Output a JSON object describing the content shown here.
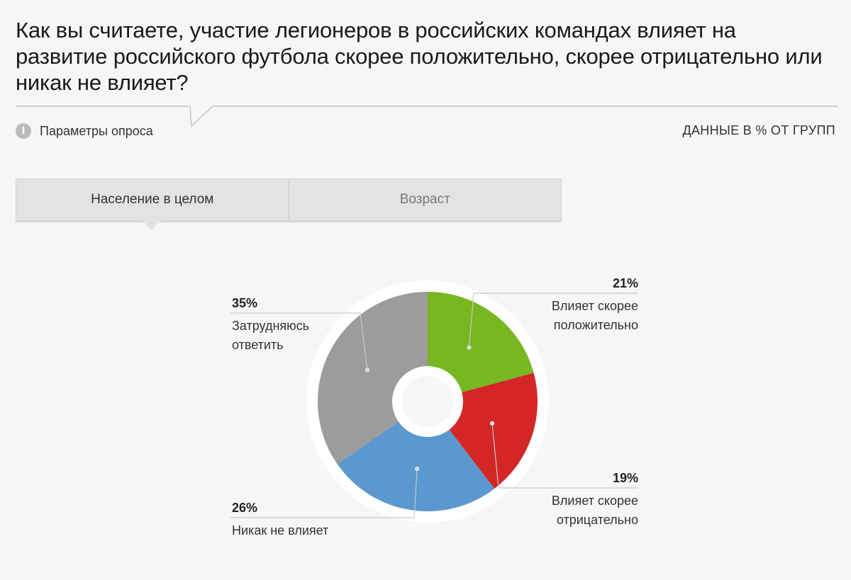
{
  "question": "Как вы считаете, участие легионеров в российских командах влияет на развитие российского футбола скорее положительно, скорее отрицательно или никак не влияет?",
  "params_label": "Параметры опроса",
  "units_label": "ДАННЫЕ В % ОТ ГРУПП",
  "tabs": [
    {
      "label": "Население в целом",
      "active": true
    },
    {
      "label": "Возраст",
      "active": false
    }
  ],
  "icons": {
    "info": "info-icon"
  },
  "chart_data": {
    "type": "pie",
    "donut": true,
    "slices": [
      {
        "label": "Влияет скорее положительно",
        "value": 21,
        "pct_label": "21%",
        "color": "#77b720"
      },
      {
        "label": "Влияет скорее отрицательно",
        "value": 19,
        "pct_label": "19%",
        "color": "#d42626"
      },
      {
        "label": "Никак не влияет",
        "value": 26,
        "pct_label": "26%",
        "color": "#5b98cf"
      },
      {
        "label": "Затрудняюсь ответить",
        "value": 35,
        "pct_label": "35%",
        "color": "#9c9c9c"
      }
    ]
  }
}
